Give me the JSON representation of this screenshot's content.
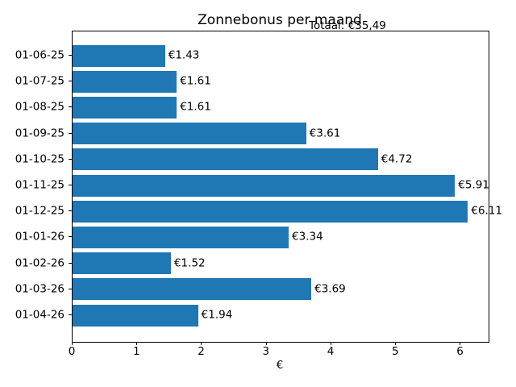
{
  "chart_data": {
    "type": "bar",
    "orientation": "horizontal",
    "title": "Zonnebonus per maand",
    "annotation": "Totaal: €35,49",
    "xlabel": "€",
    "ylabel": "",
    "categories": [
      "01-06-25",
      "01-07-25",
      "01-08-25",
      "01-09-25",
      "01-10-25",
      "01-11-25",
      "01-12-25",
      "01-01-26",
      "01-02-26",
      "01-03-26",
      "01-04-26"
    ],
    "values": [
      1.43,
      1.61,
      1.61,
      3.61,
      4.72,
      5.91,
      6.11,
      3.34,
      1.52,
      3.69,
      1.94
    ],
    "value_labels": [
      "€1.43",
      "€1.61",
      "€1.61",
      "€3.61",
      "€4.72",
      "€5.91",
      "€6.11",
      "€3.34",
      "€1.52",
      "€3.69",
      "€1.94"
    ],
    "xticks": [
      0,
      1,
      2,
      3,
      4,
      5,
      6
    ],
    "xlim": [
      0,
      6.43
    ],
    "bar_color": "#1f77b4",
    "text_color": "#000000",
    "grid": false,
    "legend_position": "none"
  }
}
